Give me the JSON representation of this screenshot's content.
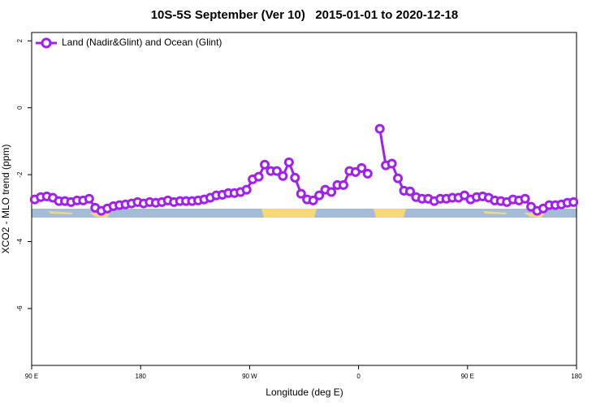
{
  "chart_data": {
    "type": "line",
    "title": "10S-5S September (Ver 10)   2015-01-01 to 2020-12-18",
    "x_label": "Longitude (deg E)",
    "y_label": "XCO2 - MLO trend (ppm)",
    "xlim": [
      90,
      540
    ],
    "xticks": [
      {
        "value": 90,
        "label": "90 E"
      },
      {
        "value": 180,
        "label": "180"
      },
      {
        "value": 270,
        "label": "90 W"
      },
      {
        "value": 360,
        "label": "0"
      },
      {
        "value": 450,
        "label": "90 E"
      },
      {
        "value": 540,
        "label": "180"
      }
    ],
    "ylim": [
      -7.7,
      2.25
    ],
    "yticks": [
      2,
      0,
      -2,
      -4,
      -6
    ],
    "legend_position": "top-left",
    "x": [
      92.5,
      97.5,
      102.5,
      107.5,
      112.5,
      117.5,
      122.5,
      127.5,
      132.5,
      137.5,
      142.5,
      147.5,
      152.5,
      157.5,
      162.5,
      167.5,
      172.5,
      177.5,
      182.5,
      187.5,
      192.5,
      197.5,
      202.5,
      207.5,
      212.5,
      217.5,
      222.5,
      227.5,
      232.5,
      237.5,
      242.5,
      247.5,
      252.5,
      257.5,
      262.5,
      267.5,
      272.5,
      277.5,
      282.5,
      287.5,
      292.5,
      297.5,
      302.5,
      307.5,
      312.5,
      317.5,
      322.5,
      327.5,
      332.5,
      337.5,
      342.5,
      347.5,
      352.5,
      357.5,
      362.5,
      367.5,
      372.5,
      377.5,
      382.5,
      387.5,
      392.5,
      397.5,
      402.5,
      407.5,
      412.5,
      417.5,
      422.5,
      427.5,
      432.5,
      437.5,
      442.5,
      447.5,
      452.5,
      457.5,
      462.5,
      467.5,
      472.5,
      477.5,
      482.5,
      487.5,
      492.5,
      497.5,
      502.5,
      507.5,
      512.5,
      517.5,
      522.5,
      527.5,
      532.5,
      537.5
    ],
    "series": [
      {
        "name": "Land (Nadir&Glint) and Ocean (Glint)",
        "color": "#a020f0",
        "values": [
          -2.74,
          -2.67,
          -2.65,
          -2.69,
          -2.79,
          -2.79,
          -2.82,
          -2.77,
          -2.77,
          -2.72,
          -2.99,
          -3.08,
          -3.01,
          -2.94,
          -2.91,
          -2.89,
          -2.86,
          -2.82,
          -2.86,
          -2.82,
          -2.84,
          -2.82,
          -2.77,
          -2.82,
          -2.79,
          -2.79,
          -2.79,
          -2.77,
          -2.74,
          -2.69,
          -2.62,
          -2.6,
          -2.55,
          -2.55,
          -2.52,
          -2.45,
          -2.14,
          -2.06,
          -1.7,
          -1.89,
          -1.89,
          -2.04,
          -1.63,
          -2.09,
          -2.57,
          -2.74,
          -2.77,
          -2.62,
          -2.45,
          -2.52,
          -2.31,
          -2.31,
          -1.89,
          -1.92,
          -1.8,
          -1.97,
          null,
          -0.63,
          -1.72,
          -1.67,
          -2.11,
          -2.48,
          -2.5,
          -2.67,
          -2.72,
          -2.72,
          -2.79,
          -2.72,
          -2.72,
          -2.69,
          -2.69,
          -2.62,
          -2.74,
          -2.67,
          -2.65,
          -2.69,
          -2.77,
          -2.79,
          -2.82,
          -2.74,
          -2.77,
          -2.72,
          -2.96,
          -3.08,
          -3.01,
          -2.91,
          -2.91,
          -2.89,
          -2.84,
          -2.82
        ]
      }
    ]
  }
}
